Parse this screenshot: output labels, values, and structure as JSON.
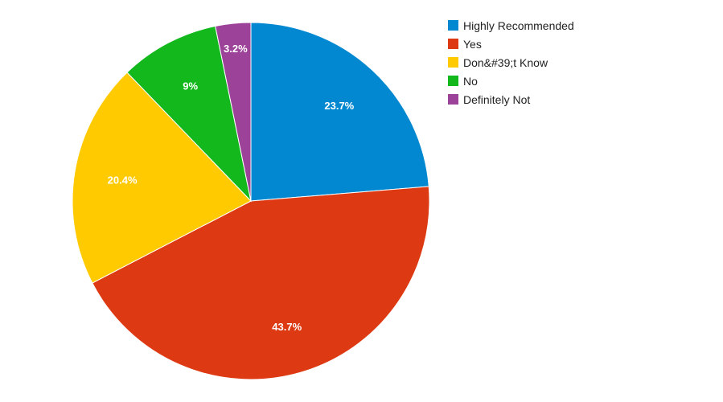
{
  "chart_data": {
    "type": "pie",
    "title": "",
    "legend_position": "top-right",
    "slices": [
      {
        "name": "Highly Recommended",
        "value": 23.7,
        "label": "23.7%",
        "color": "#0288d1"
      },
      {
        "name": "Yes",
        "value": 43.7,
        "label": "43.7%",
        "color": "#dd3912"
      },
      {
        "name": "Don&#39;t Know",
        "value": 20.4,
        "label": "20.4%",
        "color": "#ffca00"
      },
      {
        "name": "No",
        "value": 9,
        "label": "9%",
        "color": "#12b81c"
      },
      {
        "name": "Definitely Not",
        "value": 3.2,
        "label": "3.2%",
        "color": "#9c4299"
      }
    ]
  }
}
